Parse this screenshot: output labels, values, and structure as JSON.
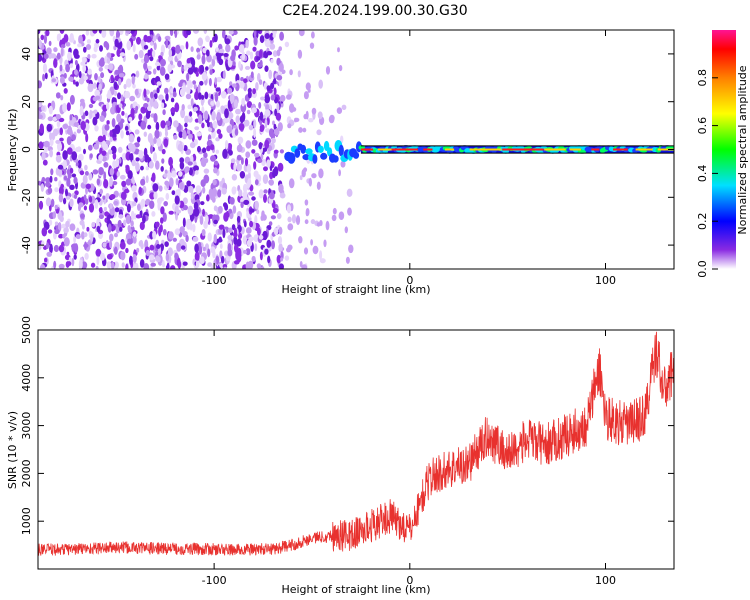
{
  "title": "C2E4.2024.199.00.30.G30",
  "chart_data": [
    {
      "type": "heatmap",
      "xlabel": "Height of straight line (km)",
      "ylabel": "Frequency (Hz)",
      "xlim": [
        -190,
        135
      ],
      "ylim": [
        -50,
        50
      ],
      "xticks": [
        -100,
        0,
        100
      ],
      "yticks": [
        -40,
        -20,
        0,
        20,
        40
      ],
      "colorbar": {
        "label": "Normalized spectral amplitude",
        "range": [
          0,
          1
        ],
        "ticks": [
          0.0,
          0.2,
          0.4,
          0.6,
          0.8
        ]
      },
      "features": {
        "noise_region_x": [
          -190,
          -30
        ],
        "signal_line_freq_hz": 0,
        "signal_start_x": -62
      }
    },
    {
      "type": "line",
      "xlabel": "Height of straight line (km)",
      "ylabel": "SNR (10 * v/v)",
      "xlim": [
        -190,
        135
      ],
      "ylim": [
        0,
        5000
      ],
      "xticks": [
        -100,
        0,
        100
      ],
      "yticks": [
        1000,
        2000,
        3000,
        4000,
        5000
      ],
      "series": [
        {
          "color": "#e8312e",
          "x": [
            -190,
            -170,
            -150,
            -130,
            -110,
            -90,
            -70,
            -60,
            -50,
            -40,
            -30,
            -20,
            -10,
            0,
            10,
            20,
            30,
            40,
            50,
            60,
            70,
            80,
            90,
            97,
            100,
            110,
            120,
            126,
            130,
            135
          ],
          "y": [
            400,
            420,
            450,
            430,
            420,
            400,
            420,
            500,
            650,
            700,
            700,
            900,
            1100,
            800,
            1900,
            2100,
            2200,
            2800,
            2400,
            2700,
            2600,
            2800,
            3000,
            4200,
            3200,
            3000,
            3200,
            4600,
            3700,
            4200
          ]
        }
      ]
    }
  ]
}
